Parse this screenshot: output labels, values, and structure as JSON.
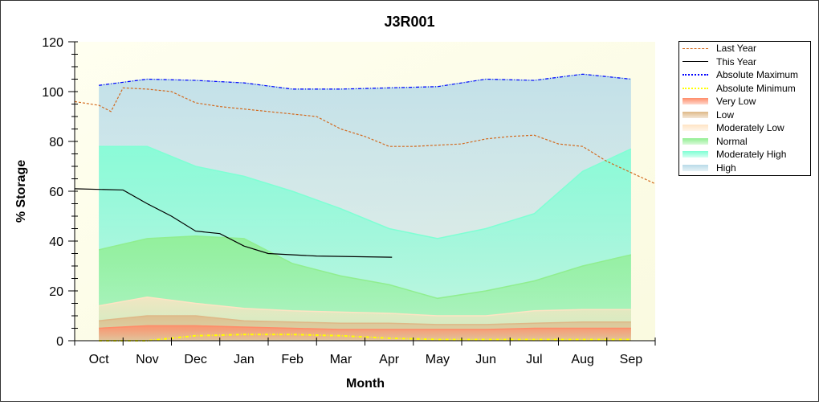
{
  "chart_data": {
    "type": "area",
    "title": "J3R001",
    "xlabel": "Month",
    "ylabel": "% Storage",
    "ylim": [
      0,
      120
    ],
    "yticks": [
      0,
      20,
      40,
      60,
      80,
      100,
      120
    ],
    "categories": [
      "Oct",
      "Nov",
      "Dec",
      "Jan",
      "Feb",
      "Mar",
      "Apr",
      "May",
      "Jun",
      "Jul",
      "Aug",
      "Sep"
    ],
    "band_x": [
      0.5,
      1.5,
      2.5,
      3.5,
      4.5,
      5.5,
      6.5,
      7.5,
      8.5,
      9.5,
      10.5,
      11.5
    ],
    "bands": [
      {
        "name": "High",
        "color": "#b8dbe8",
        "top": [
          102.5,
          105,
          104.5,
          103.5,
          101,
          101,
          101.5,
          102,
          105,
          104.5,
          107,
          105
        ]
      },
      {
        "name": "Moderately High",
        "color": "#7fffd4",
        "top": [
          78,
          78,
          70,
          66,
          60,
          53,
          45,
          41,
          45,
          51,
          68,
          77
        ]
      },
      {
        "name": "Normal",
        "color": "#90ee90",
        "top": [
          36.5,
          41,
          42,
          41,
          31,
          26,
          22.5,
          17,
          20,
          24,
          30,
          34.5
        ]
      },
      {
        "name": "Moderately Low",
        "color": "#ffe4c4",
        "top": [
          14,
          17.5,
          15,
          13,
          12,
          11.5,
          11,
          10,
          10,
          12,
          12.5,
          12.5
        ]
      },
      {
        "name": "Low",
        "color": "#deb887",
        "top": [
          8,
          10,
          10,
          8,
          7.5,
          7,
          7,
          6.5,
          6.5,
          7,
          7.5,
          7.5
        ]
      },
      {
        "name": "Very Low",
        "color": "#ff8c69",
        "top": [
          5,
          6,
          6,
          5.5,
          5,
          4.5,
          4.5,
          4.5,
          4.5,
          5,
          5,
          5
        ]
      }
    ],
    "series": [
      {
        "name": "Last Year",
        "color": "#d2691e",
        "style": "dash",
        "x": [
          0,
          0.5,
          0.75,
          1,
          1.5,
          2,
          2.5,
          3,
          4,
          5,
          5.5,
          6,
          6.5,
          7,
          8,
          8.5,
          9,
          9.5,
          10,
          10.5,
          11,
          12
        ],
        "y": [
          96,
          94.5,
          92,
          101.5,
          101,
          100,
          95.5,
          94,
          92,
          90,
          85,
          82,
          78,
          78,
          79,
          81,
          82,
          82.5,
          79,
          78,
          72,
          63
        ]
      },
      {
        "name": "This Year",
        "color": "#000000",
        "style": "solid",
        "x": [
          0,
          1,
          1.5,
          2,
          2.5,
          3,
          3.5,
          4,
          5,
          6.56
        ],
        "y": [
          61,
          60.5,
          55,
          50,
          44,
          43,
          38,
          35,
          34,
          33.5
        ]
      },
      {
        "name": "Absolute Maximum",
        "color": "#0000ff",
        "style": "dashdot",
        "x": [
          0.5,
          1.5,
          2.5,
          3.5,
          4.5,
          5.5,
          6.5,
          7.5,
          8.5,
          9.5,
          10.5,
          11.5
        ],
        "y": [
          102.5,
          105,
          104.5,
          103.5,
          101,
          101,
          101.5,
          102,
          105,
          104.5,
          107,
          105
        ]
      },
      {
        "name": "Absolute Minimum",
        "color": "#ffff00",
        "style": "dashdot",
        "x": [
          0.5,
          1.5,
          2.5,
          3.5,
          4.5,
          5.5,
          6.5,
          7.5,
          8.5,
          9.5,
          10.5,
          11.5
        ],
        "y": [
          0,
          0,
          2,
          2.5,
          2.5,
          2,
          1,
          0.5,
          0.5,
          0.5,
          0.5,
          0.5
        ]
      }
    ],
    "legend": [
      "Last Year",
      "This Year",
      "Absolute Maximum",
      "Absolute Minimum",
      "Very Low",
      "Low",
      "Moderately Low",
      "Normal",
      "Moderately High",
      "High"
    ],
    "legend_colors": [
      "#d2691e",
      "#000000",
      "#0000ff",
      "#ffff00",
      "#ff8c69",
      "#deb887",
      "#ffe4c4",
      "#90ee90",
      "#7fffd4",
      "#b8dbe8"
    ],
    "legend_placement": "right"
  }
}
